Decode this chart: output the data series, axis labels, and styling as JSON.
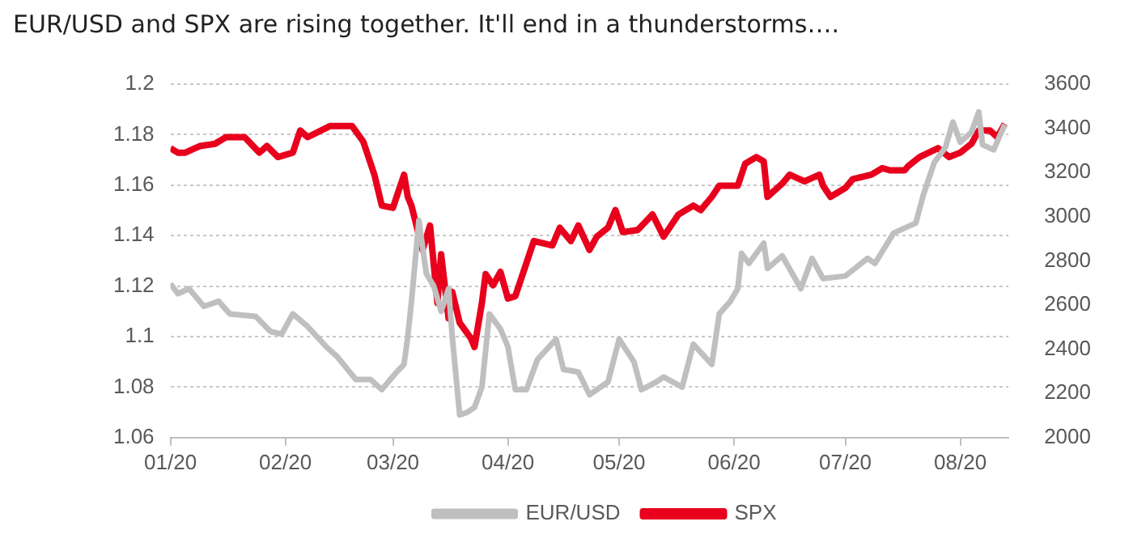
{
  "chart_data": {
    "type": "line",
    "title": "EUR/USD and SPX are rising together. It'll end in a thunderstorms….",
    "xlim": [
      "2020-01-01",
      "2020-08-14"
    ],
    "xticks": [
      {
        "value": "2020-01-01",
        "label": "01/20"
      },
      {
        "value": "2020-02-01",
        "label": "02/20"
      },
      {
        "value": "2020-03-01",
        "label": "03/20"
      },
      {
        "value": "2020-04-01",
        "label": "04/20"
      },
      {
        "value": "2020-05-01",
        "label": "05/20"
      },
      {
        "value": "2020-06-01",
        "label": "06/20"
      },
      {
        "value": "2020-07-01",
        "label": "07/20"
      },
      {
        "value": "2020-08-01",
        "label": "08/20"
      }
    ],
    "ylim": [
      1.06,
      1.2
    ],
    "yticks": [
      1.06,
      1.08,
      1.1,
      1.12,
      1.14,
      1.16,
      1.18,
      1.2
    ],
    "y2lim": [
      2000,
      3600
    ],
    "y2ticks": [
      2000,
      2200,
      2400,
      2600,
      2800,
      3000,
      3200,
      3400,
      3600
    ],
    "grid": "y",
    "legend": "bottom",
    "marker": "none",
    "series": [
      {
        "name": "EUR/USD",
        "color": "#bfbfbf",
        "axis": "y",
        "x": [
          "2020-01-01",
          "2020-01-03",
          "2020-01-06",
          "2020-01-10",
          "2020-01-14",
          "2020-01-17",
          "2020-01-24",
          "2020-01-28",
          "2020-01-31",
          "2020-02-03",
          "2020-02-07",
          "2020-02-12",
          "2020-02-15",
          "2020-02-20",
          "2020-02-24",
          "2020-02-27",
          "2020-03-02",
          "2020-03-04",
          "2020-03-05",
          "2020-03-06",
          "2020-03-08",
          "2020-03-10",
          "2020-03-12",
          "2020-03-14",
          "2020-03-16",
          "2020-03-17",
          "2020-03-19",
          "2020-03-21",
          "2020-03-23",
          "2020-03-25",
          "2020-03-27",
          "2020-03-30",
          "2020-04-01",
          "2020-04-03",
          "2020-04-06",
          "2020-04-09",
          "2020-04-14",
          "2020-04-16",
          "2020-04-20",
          "2020-04-23",
          "2020-04-28",
          "2020-05-01",
          "2020-05-05",
          "2020-05-07",
          "2020-05-11",
          "2020-05-13",
          "2020-05-18",
          "2020-05-21",
          "2020-05-26",
          "2020-05-28",
          "2020-05-31",
          "2020-06-02",
          "2020-06-03",
          "2020-06-05",
          "2020-06-09",
          "2020-06-10",
          "2020-06-14",
          "2020-06-19",
          "2020-06-22",
          "2020-06-25",
          "2020-07-01",
          "2020-07-07",
          "2020-07-09",
          "2020-07-14",
          "2020-07-20",
          "2020-07-22",
          "2020-07-25",
          "2020-07-28",
          "2020-07-30",
          "2020-08-01",
          "2020-08-04",
          "2020-08-06",
          "2020-08-07",
          "2020-08-10",
          "2020-08-13"
        ],
        "values": [
          1.121,
          1.117,
          1.119,
          1.112,
          1.114,
          1.109,
          1.108,
          1.102,
          1.101,
          1.109,
          1.104,
          1.096,
          1.092,
          1.083,
          1.083,
          1.079,
          1.086,
          1.089,
          1.1,
          1.114,
          1.146,
          1.125,
          1.12,
          1.11,
          1.119,
          1.1,
          1.069,
          1.07,
          1.072,
          1.08,
          1.109,
          1.103,
          1.096,
          1.079,
          1.079,
          1.091,
          1.099,
          1.087,
          1.086,
          1.077,
          1.082,
          1.099,
          1.09,
          1.079,
          1.082,
          1.084,
          1.08,
          1.097,
          1.089,
          1.109,
          1.114,
          1.119,
          1.133,
          1.129,
          1.137,
          1.127,
          1.132,
          1.119,
          1.131,
          1.123,
          1.124,
          1.131,
          1.129,
          1.141,
          1.145,
          1.156,
          1.169,
          1.175,
          1.185,
          1.177,
          1.181,
          1.189,
          1.176,
          1.174,
          1.184
        ]
      },
      {
        "name": "SPX",
        "color": "#e8001c",
        "axis": "y2",
        "x": [
          "2020-01-01",
          "2020-01-03",
          "2020-01-05",
          "2020-01-09",
          "2020-01-13",
          "2020-01-16",
          "2020-01-21",
          "2020-01-25",
          "2020-01-27",
          "2020-01-30",
          "2020-02-03",
          "2020-02-05",
          "2020-02-07",
          "2020-02-13",
          "2020-02-19",
          "2020-02-22",
          "2020-02-25",
          "2020-02-27",
          "2020-03-01",
          "2020-03-03",
          "2020-03-04",
          "2020-03-05",
          "2020-03-06",
          "2020-03-09",
          "2020-03-11",
          "2020-03-13",
          "2020-03-14",
          "2020-03-16",
          "2020-03-17",
          "2020-03-19",
          "2020-03-22",
          "2020-03-23",
          "2020-03-25",
          "2020-03-26",
          "2020-03-28",
          "2020-03-30",
          "2020-04-01",
          "2020-04-03",
          "2020-04-06",
          "2020-04-08",
          "2020-04-13",
          "2020-04-15",
          "2020-04-18",
          "2020-04-20",
          "2020-04-23",
          "2020-04-25",
          "2020-04-28",
          "2020-04-30",
          "2020-05-02",
          "2020-05-06",
          "2020-05-10",
          "2020-05-13",
          "2020-05-17",
          "2020-05-21",
          "2020-05-23",
          "2020-05-26",
          "2020-05-28",
          "2020-06-02",
          "2020-06-04",
          "2020-06-07",
          "2020-06-09",
          "2020-06-10",
          "2020-06-14",
          "2020-06-16",
          "2020-06-20",
          "2020-06-24",
          "2020-06-25",
          "2020-06-27",
          "2020-07-01",
          "2020-07-03",
          "2020-07-08",
          "2020-07-11",
          "2020-07-13",
          "2020-07-17",
          "2020-07-18",
          "2020-07-21",
          "2020-07-26",
          "2020-07-29",
          "2020-08-01",
          "2020-08-04",
          "2020-08-06",
          "2020-08-09",
          "2020-08-11",
          "2020-08-13"
        ],
        "values": [
          3310,
          3290,
          3290,
          3320,
          3330,
          3360,
          3360,
          3290,
          3320,
          3270,
          3290,
          3390,
          3360,
          3410,
          3410,
          3340,
          3190,
          3050,
          3040,
          3140,
          3190,
          3090,
          3050,
          2850,
          2960,
          2610,
          2830,
          2540,
          2660,
          2520,
          2450,
          2410,
          2610,
          2740,
          2690,
          2750,
          2630,
          2640,
          2790,
          2890,
          2870,
          2950,
          2890,
          2960,
          2850,
          2910,
          2950,
          3030,
          2930,
          2940,
          3010,
          2910,
          3010,
          3050,
          3030,
          3090,
          3140,
          3140,
          3240,
          3270,
          3250,
          3090,
          3150,
          3190,
          3160,
          3190,
          3140,
          3090,
          3130,
          3170,
          3190,
          3220,
          3210,
          3210,
          3230,
          3270,
          3310,
          3270,
          3290,
          3330,
          3390,
          3390,
          3360,
          3420
        ]
      }
    ]
  }
}
